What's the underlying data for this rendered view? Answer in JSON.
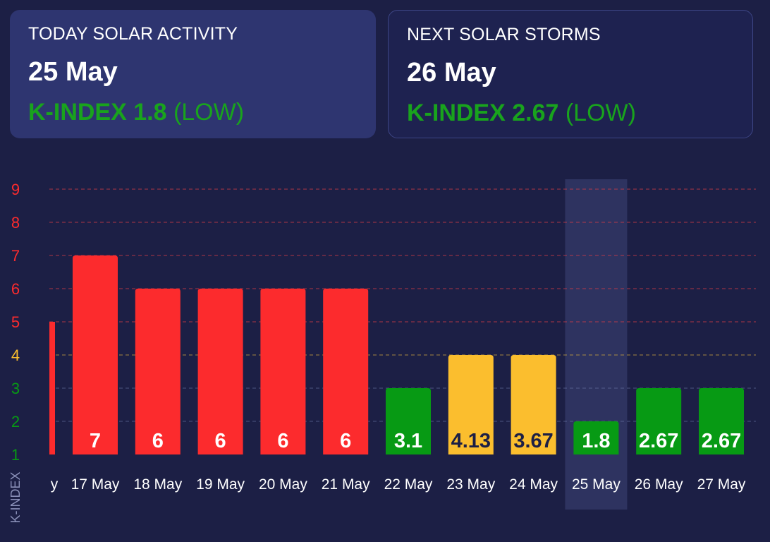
{
  "today_card": {
    "label": "TODAY SOLAR ACTIVITY",
    "date": "25 May",
    "kindex_prefix": "K-INDEX 1.8",
    "level": "(LOW)"
  },
  "next_card": {
    "label": "NEXT SOLAR STORMS",
    "date": "26 May",
    "kindex_prefix": "K-INDEX 2.67",
    "level": "(LOW)"
  },
  "colors": {
    "background": "#1c1f45",
    "red": "#fc2b2d",
    "yellow": "#fbbe2e",
    "green": "#079a14",
    "highlight": "#2e3360"
  },
  "chart_data": {
    "type": "bar",
    "ylabel": "K-INDEX",
    "ylim": [
      1,
      9
    ],
    "yticks": [
      1,
      2,
      3,
      4,
      5,
      6,
      7,
      8,
      9
    ],
    "highlighted_category": "25 May",
    "partial_first_bar": {
      "label": "y",
      "value": 5
    },
    "categories": [
      "17 May",
      "18 May",
      "19 May",
      "20 May",
      "21 May",
      "22 May",
      "23 May",
      "24 May",
      "25 May",
      "26 May",
      "27 May"
    ],
    "values": [
      7,
      6,
      6,
      6,
      6,
      3,
      4,
      4,
      2,
      3,
      3
    ],
    "labels": [
      "7",
      "6",
      "6",
      "6",
      "6",
      "3.1",
      "4.13",
      "3.67",
      "1.8",
      "2.67",
      "2.67"
    ],
    "bar_colors": [
      "red",
      "red",
      "red",
      "red",
      "red",
      "green",
      "yellow",
      "yellow",
      "green",
      "green",
      "green"
    ]
  }
}
